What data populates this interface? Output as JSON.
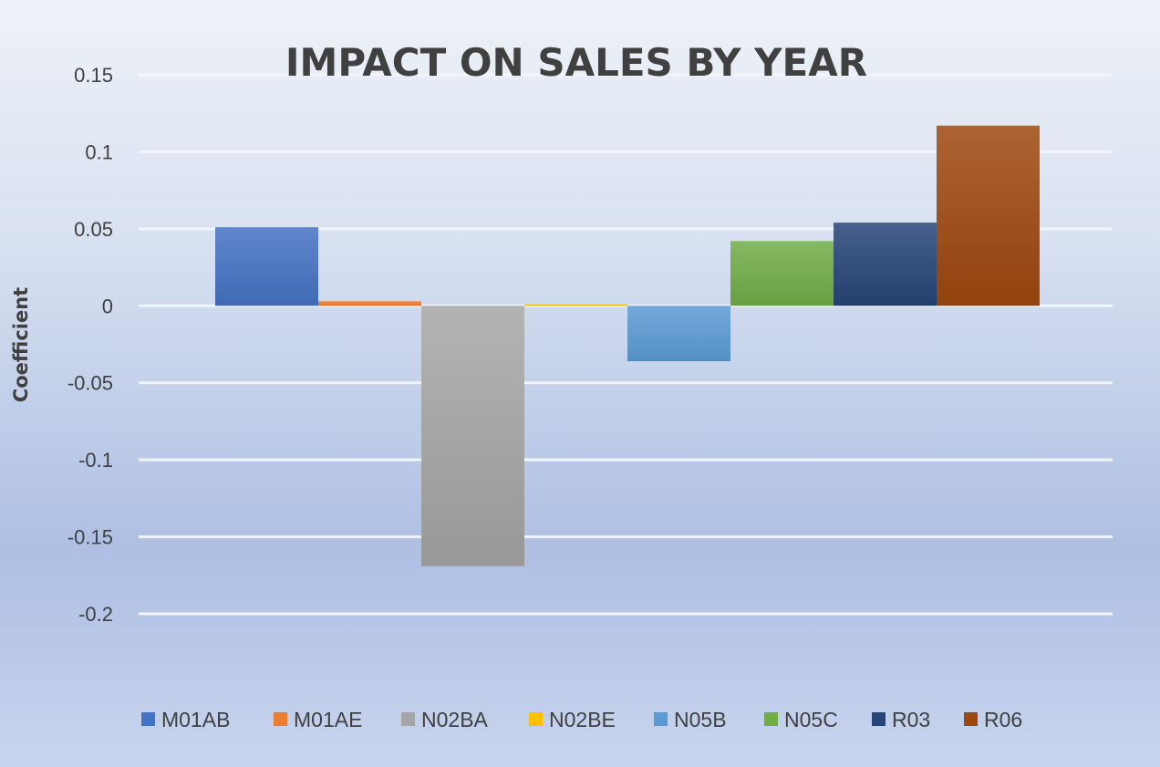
{
  "chart_data": {
    "type": "bar",
    "title": "IMPACT ON SALES BY YEAR",
    "xlabel": "",
    "ylabel": "Coefficient",
    "ylim": [
      -0.2,
      0.15
    ],
    "yticks": [
      0.15,
      0.1,
      0.05,
      0,
      -0.05,
      -0.1,
      -0.15,
      -0.2
    ],
    "ytick_labels": [
      "0.15",
      "0.1",
      "0.05",
      "0",
      "-0.05",
      "-0.1",
      "-0.15",
      "-0.2"
    ],
    "grid": true,
    "legend_position": "bottom",
    "series": [
      {
        "name": "M01AB",
        "value": 0.051,
        "color": "#4472c4"
      },
      {
        "name": "M01AE",
        "value": 0.003,
        "color": "#ed7d31"
      },
      {
        "name": "N02BA",
        "value": -0.169,
        "color": "#a5a5a5"
      },
      {
        "name": "N02BE",
        "value": 0.001,
        "color": "#ffc000"
      },
      {
        "name": "N05B",
        "value": -0.036,
        "color": "#5b9bd5"
      },
      {
        "name": "N05C",
        "value": 0.042,
        "color": "#70ad47"
      },
      {
        "name": "R03",
        "value": 0.054,
        "color": "#264478"
      },
      {
        "name": "R06",
        "value": 0.117,
        "color": "#9e480e"
      }
    ]
  }
}
